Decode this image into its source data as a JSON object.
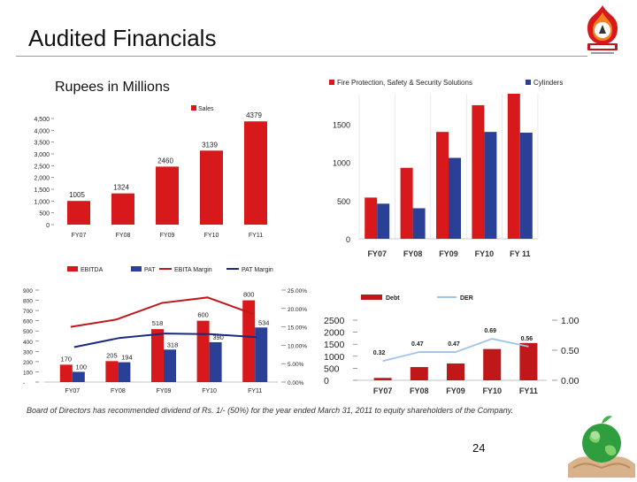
{
  "header": {
    "title": "Audited Financials"
  },
  "units_label": "Rupees in Millions",
  "dividend_note": "Board of Directors has recommended dividend of Rs. 1/- (50%) for the year ended March 31, 2011 to equity shareholders of the Company.",
  "page_number": "24",
  "colors": {
    "red": "#d7191c",
    "blue": "#2a3f96",
    "navy": "#1a2a80",
    "darkred": "#c0171b",
    "lightblue": "#9fc4e7"
  },
  "chart_data": [
    {
      "id": "sales",
      "type": "bar",
      "legend": [
        "Sales"
      ],
      "categories": [
        "FY07",
        "FY08",
        "FY09",
        "FY10",
        "FY11"
      ],
      "series": [
        {
          "name": "Sales",
          "values": [
            1005,
            1324,
            2460,
            3139,
            4379
          ]
        }
      ],
      "data_labels": [
        "1005",
        "1324",
        "2460",
        "3139",
        "4379"
      ],
      "y_ticks": [
        "4,500",
        "4,000",
        "3,500",
        "3,000",
        "2,500",
        "2,000",
        "1,500",
        "1,000",
        "500",
        "0"
      ],
      "y_tick_values": [
        4500,
        4000,
        3500,
        3000,
        2500,
        2000,
        1500,
        1000,
        500,
        0
      ],
      "ylim": [
        0,
        4500
      ]
    },
    {
      "id": "segments",
      "type": "bar",
      "legend": [
        "Fire Protection, Safety & Security Solutions",
        "Cylinders"
      ],
      "categories": [
        "FY07",
        "FY08",
        "FY09",
        "FY10",
        "FY 11"
      ],
      "series": [
        {
          "name": "Fire Protection, Safety & Security Solutions",
          "values": [
            540,
            930,
            1400,
            1750,
            1900
          ]
        },
        {
          "name": "Cylinders",
          "values": [
            460,
            400,
            1060,
            1400,
            1390
          ]
        }
      ],
      "y_ticks": [
        "1500",
        "1000",
        "500",
        "0"
      ],
      "y_tick_values": [
        1500,
        1000,
        500,
        0
      ],
      "ylim": [
        0,
        1900
      ]
    },
    {
      "id": "ebitda_pat",
      "type": "bar",
      "legend": [
        "EBITDA",
        "PAT",
        "EBITA Margin",
        "PAT Margin"
      ],
      "categories": [
        "FY07",
        "FY08",
        "FY09",
        "FY10",
        "FY11"
      ],
      "series": [
        {
          "name": "EBITDA",
          "values": [
            170,
            205,
            518,
            600,
            800
          ]
        },
        {
          "name": "PAT",
          "values": [
            100,
            194,
            318,
            390,
            534
          ]
        },
        {
          "name": "EBITA Margin",
          "values": [
            15.0,
            17.0,
            21.5,
            23.0,
            18.5
          ]
        },
        {
          "name": "PAT Margin",
          "values": [
            9.5,
            12.0,
            13.2,
            13.0,
            12.2
          ]
        }
      ],
      "ebitda_labels": [
        "170",
        "205",
        "518",
        "600",
        "800"
      ],
      "pat_labels": [
        "100",
        "194",
        "318",
        "390",
        "534"
      ],
      "y_ticks": [
        "900",
        "800",
        "700",
        "600",
        "500",
        "400",
        "300",
        "200",
        "100",
        "-"
      ],
      "y_tick_values": [
        900,
        800,
        700,
        600,
        500,
        400,
        300,
        200,
        100,
        0
      ],
      "y2_ticks": [
        "25.00%",
        "20.00%",
        "15.00%",
        "10.00%",
        "5.00%",
        "0.00%"
      ],
      "y2_tick_values": [
        25,
        20,
        15,
        10,
        5,
        0
      ],
      "ylim": [
        0,
        900
      ],
      "y2lim": [
        0,
        25
      ]
    },
    {
      "id": "debt_der",
      "type": "bar",
      "legend": [
        "Debt",
        "DER"
      ],
      "categories": [
        "FY07",
        "FY08",
        "FY09",
        "FY10",
        "FY11"
      ],
      "series": [
        {
          "name": "Debt",
          "values": [
            100,
            550,
            700,
            1300,
            1550
          ]
        },
        {
          "name": "DER",
          "values": [
            0.32,
            0.47,
            0.47,
            0.69,
            0.56
          ]
        }
      ],
      "der_labels": [
        "0.32",
        "0.47",
        "0.47",
        "0.69",
        "0.56"
      ],
      "y_ticks": [
        "2500",
        "2000",
        "1500",
        "1000",
        "500",
        "0"
      ],
      "y_tick_values": [
        2500,
        2000,
        1500,
        1000,
        500,
        0
      ],
      "y2_ticks": [
        "1.00",
        "0.50",
        "0.00"
      ],
      "y2_tick_values": [
        1.0,
        0.5,
        0.0
      ],
      "ylim": [
        0,
        2500
      ],
      "y2lim": [
        0,
        1.0
      ]
    }
  ]
}
